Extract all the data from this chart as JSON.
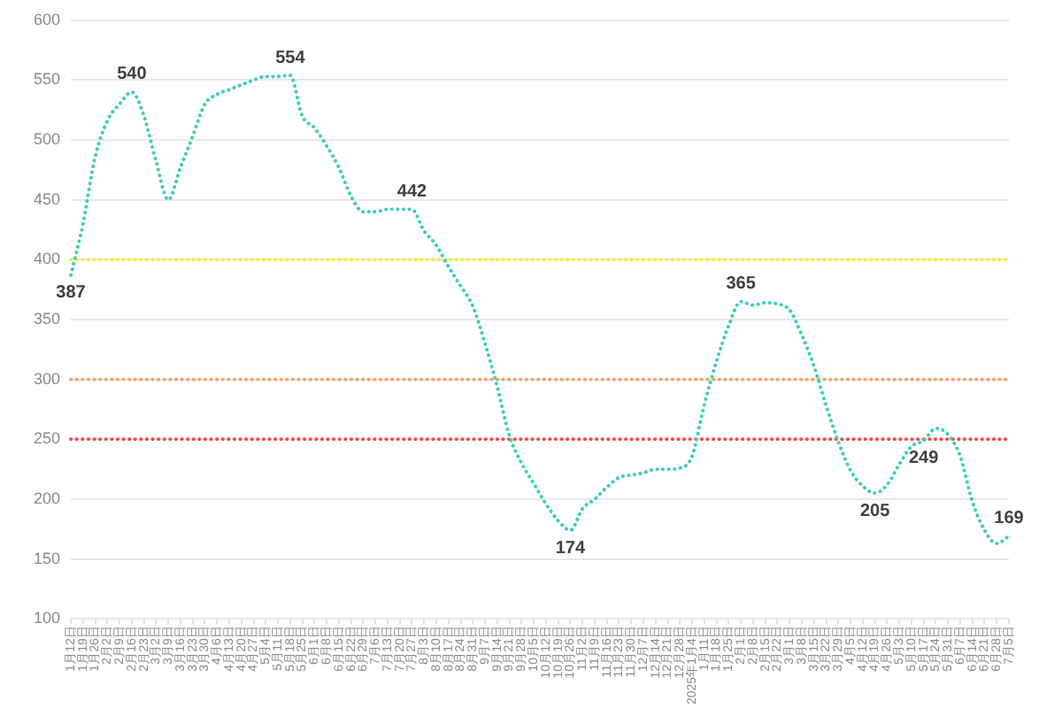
{
  "chart_data": {
    "type": "line",
    "categories": [
      "1月12日",
      "1月19日",
      "1月26日",
      "2月2日",
      "2月9日",
      "2月16日",
      "2月23日",
      "3月2日",
      "3月9日",
      "3月16日",
      "3月23日",
      "3月30日",
      "4月6日",
      "4月13日",
      "4月20日",
      "4月27日",
      "5月4日",
      "5月11日",
      "5月18日",
      "5月25日",
      "6月1日",
      "6月8日",
      "6月15日",
      "6月22日",
      "6月29日",
      "7月6日",
      "7月13日",
      "7月20日",
      "7月27日",
      "8月3日",
      "8月10日",
      "8月17日",
      "8月24日",
      "8月31日",
      "9月7日",
      "9月14日",
      "9月21日",
      "9月28日",
      "10月5日",
      "10月12日",
      "10月19日",
      "10月26日",
      "11月2日",
      "11月9日",
      "11月16日",
      "11月23日",
      "11月30日",
      "12月7日",
      "12月14日",
      "12月21日",
      "12月28日",
      "2025年1月4日",
      "1月11日",
      "1月18日",
      "1月25日",
      "2月1日",
      "2月8日",
      "2月15日",
      "2月22日",
      "3月1日",
      "3月8日",
      "3月15日",
      "3月22日",
      "3月29日",
      "4月5日",
      "4月12日",
      "4月19日",
      "4月26日",
      "5月3日",
      "5月10日",
      "5月17日",
      "5月24日",
      "5月31日",
      "6月7日",
      "6月14日",
      "6月21日",
      "6月28日",
      "7月5日"
    ],
    "series": [
      {
        "color": "#3fcfb6",
        "values": [
          387,
          430,
          486,
          516,
          530,
          540,
          520,
          482,
          450,
          477,
          503,
          530,
          538,
          542,
          546,
          550,
          553,
          553,
          554,
          520,
          510,
          495,
          477,
          453,
          440,
          440,
          442,
          442,
          442,
          424,
          412,
          394,
          378,
          361,
          330,
          294,
          253,
          230,
          213,
          196,
          182,
          174,
          192,
          200,
          210,
          218,
          220,
          222,
          225,
          225,
          226,
          236,
          279,
          315,
          345,
          365,
          362,
          364,
          363,
          358,
          337,
          311,
          278,
          248,
          224,
          211,
          205,
          212,
          229,
          244,
          249,
          259,
          254,
          236,
          198,
          174,
          163,
          169
        ],
        "value_labels": [
          "387",
          null,
          null,
          null,
          null,
          "540",
          null,
          null,
          null,
          null,
          null,
          null,
          null,
          null,
          null,
          null,
          null,
          null,
          "554",
          null,
          null,
          null,
          null,
          null,
          null,
          null,
          null,
          null,
          "442",
          null,
          null,
          null,
          null,
          null,
          null,
          null,
          null,
          null,
          null,
          null,
          null,
          "174",
          null,
          null,
          null,
          null,
          null,
          null,
          null,
          null,
          null,
          null,
          null,
          null,
          null,
          "365",
          null,
          null,
          null,
          null,
          null,
          null,
          null,
          null,
          null,
          null,
          "205",
          null,
          null,
          null,
          "249",
          null,
          null,
          null,
          null,
          null,
          null,
          "169"
        ]
      }
    ],
    "ylim": [
      100,
      600
    ],
    "yticks": [
      100,
      150,
      200,
      250,
      300,
      350,
      400,
      450,
      500,
      550,
      600
    ],
    "grid": "y",
    "marker": "none",
    "line_style": "dotted",
    "ref_lines": [
      {
        "axis": "y",
        "value": 400,
        "color": "#f0f03c",
        "line_style": "dotted"
      },
      {
        "axis": "y",
        "value": 300,
        "color": "#f5a36c",
        "line_style": "dotted"
      },
      {
        "axis": "y",
        "value": 250,
        "color": "#ee4b4b",
        "line_style": "dotted"
      }
    ]
  }
}
